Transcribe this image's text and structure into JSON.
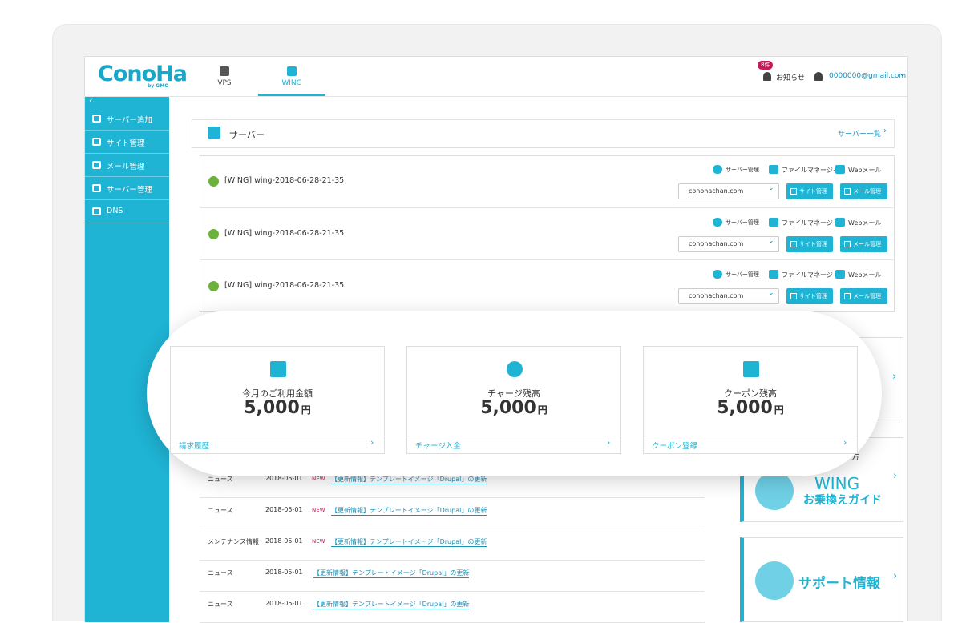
{
  "header": {
    "logo": "ConoHa",
    "logo_sub": "by GMO",
    "tabs": [
      "VPS",
      "WING"
    ],
    "badge": "8件",
    "notice": "お知らせ",
    "account": "0000000@gmail.com"
  },
  "sidebar": [
    "サーバー追加",
    "サイト管理",
    "メール管理",
    "サーバー管理",
    "DNS"
  ],
  "servers": {
    "title": "サーバー",
    "link": "サーバー一覧",
    "rows": [
      {
        "name": "[WING] wing-2018-06-28-21-35",
        "actions": [
          "サーバー管理",
          "ファイルマネージャー",
          "Webメール"
        ],
        "domain": "conohachan.com",
        "buttons": [
          "サイト管理",
          "メール管理"
        ]
      },
      {
        "name": "[WING] wing-2018-06-28-21-35",
        "actions": [
          "サーバー管理",
          "ファイルマネージャー",
          "Webメール"
        ],
        "domain": "conohachan.com",
        "buttons": [
          "サイト管理",
          "メール管理"
        ]
      },
      {
        "name": "[WING] wing-2018-06-28-21-35",
        "actions": [
          "サーバー管理",
          "ファイルマネージャー",
          "Webメール"
        ],
        "domain": "conohachan.com",
        "buttons": [
          "サイト管理",
          "メール管理"
        ]
      }
    ]
  },
  "cards": [
    {
      "label": "今月のご利用金額",
      "amount": "5,000",
      "unit": "円",
      "link": "請求履歴"
    },
    {
      "label": "チャージ残高",
      "amount": "5,000",
      "unit": "円",
      "link": "チャージ入金"
    },
    {
      "label": "クーポン残高",
      "amount": "5,000",
      "unit": "円",
      "link": "クーポン登録"
    }
  ],
  "side": {
    "partial": "中の方",
    "wing": "WING",
    "guide": "お乗換えガイド",
    "support": "サポート情報"
  },
  "news": [
    {
      "category": "ニュース",
      "date": "2018-05-01",
      "new": "NEW",
      "title": "【更新情報】テンプレートイメージ「Drupal」の更新"
    },
    {
      "category": "ニュース",
      "date": "2018-05-01",
      "new": "NEW",
      "title": "【更新情報】テンプレートイメージ「Drupal」の更新"
    },
    {
      "category": "メンテナンス情報",
      "date": "2018-05-01",
      "new": "NEW",
      "title": "【更新情報】テンプレートイメージ「Drupal」の更新"
    },
    {
      "category": "ニュース",
      "date": "2018-05-01",
      "title": "【更新情報】テンプレートイメージ「Drupal」の更新"
    },
    {
      "category": "ニュース",
      "date": "2018-05-01",
      "title": "【更新情報】テンプレートイメージ「Drupal」の更新"
    }
  ]
}
